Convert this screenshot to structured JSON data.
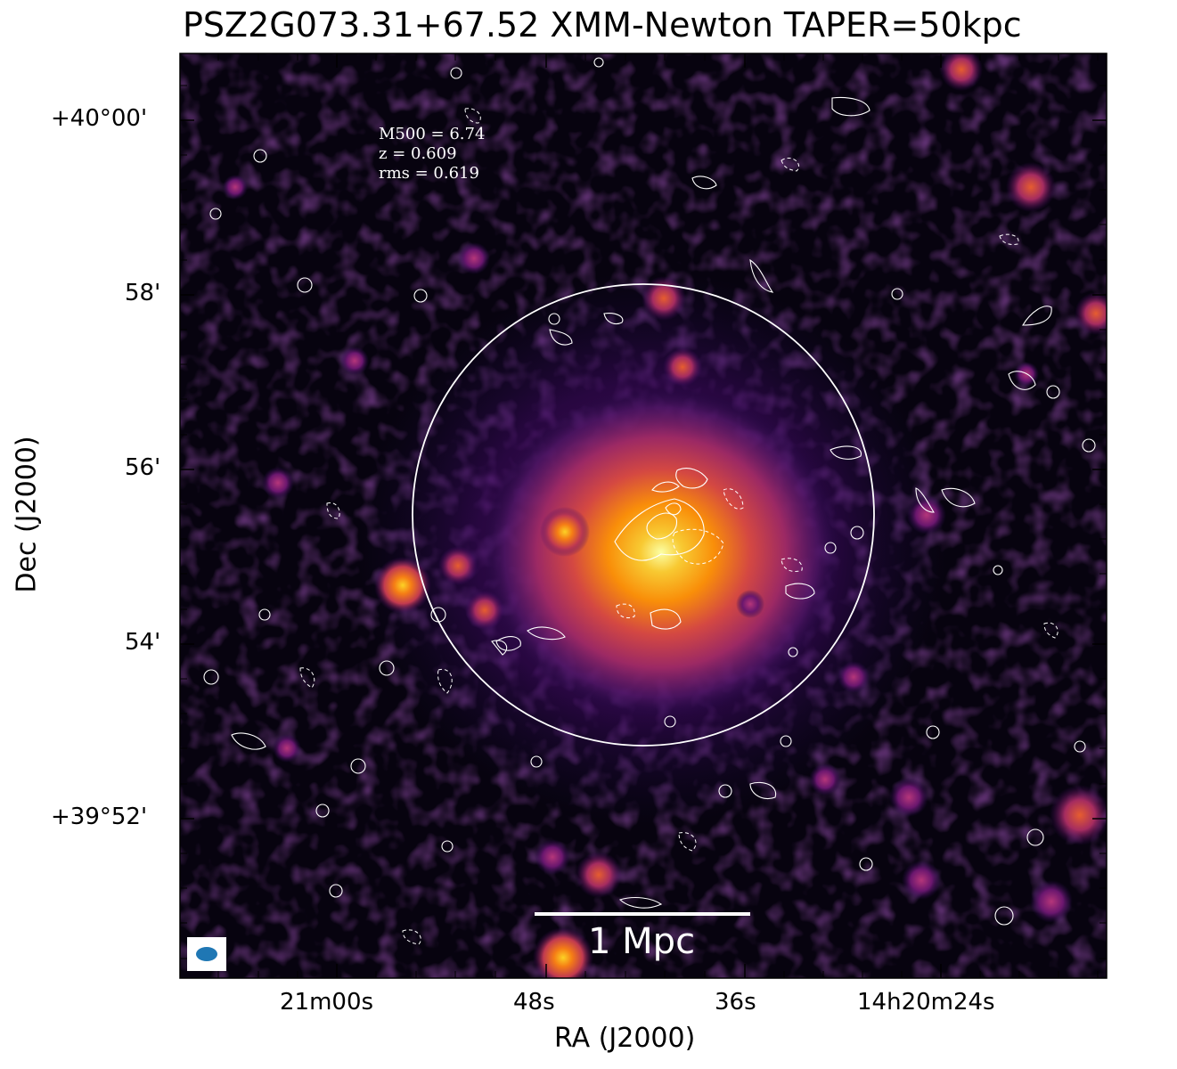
{
  "title": "PSZ2G073.31+67.52 XMM-Newton TAPER=50kpc",
  "axes": {
    "xlabel": "RA (J2000)",
    "ylabel": "Dec (J2000)",
    "xticks": [
      "21m00s",
      "48s",
      "36s",
      "14h20m24s"
    ],
    "yticks": [
      "+40°00'",
      "58'",
      "56'",
      "54'",
      "+39°52'"
    ]
  },
  "info": {
    "m500": "M500 = 6.74",
    "z": "z = 0.609",
    "rms": "rms = 0.619"
  },
  "scalebar": {
    "label": "1 Mpc"
  },
  "colors": {
    "colormap": "inferno",
    "contour": "#ffffff",
    "beam": "#1f77b4",
    "circle": "#ffffff"
  }
}
